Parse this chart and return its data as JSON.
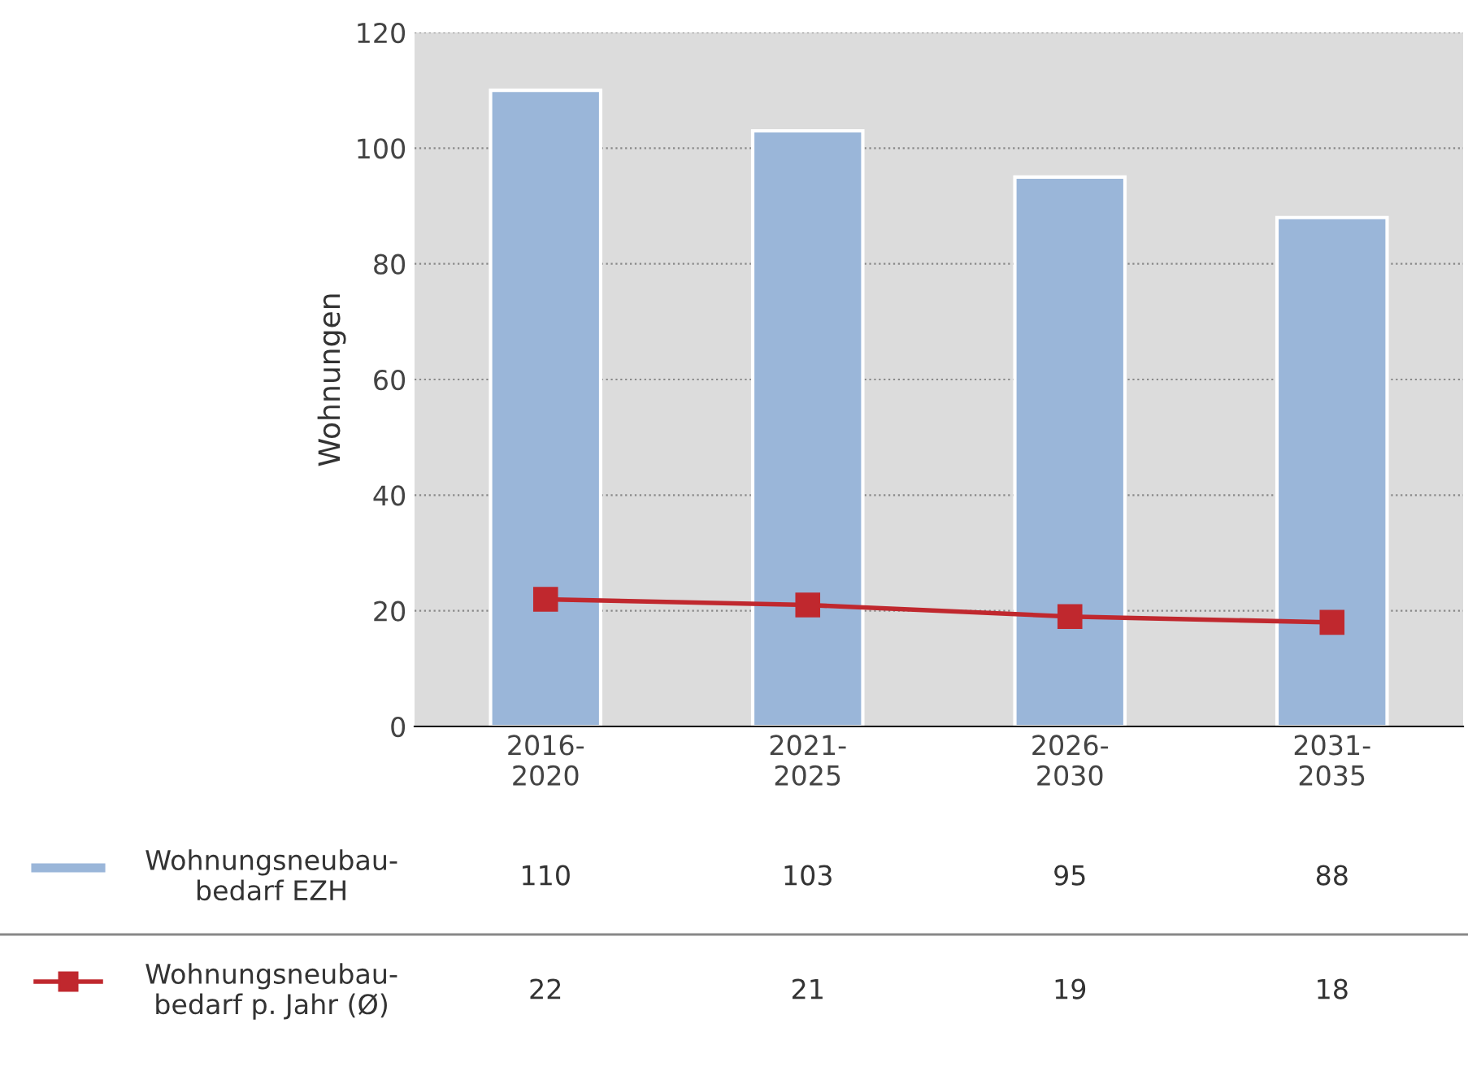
{
  "chart_data": {
    "type": "bar",
    "ylabel": "Wohnungen",
    "categories": [
      "2016-\n2020",
      "2021-\n2025",
      "2026-\n2030",
      "2031-\n2035"
    ],
    "series": [
      {
        "name": "Wohnungsneubau-\nbedarf EZH",
        "color": "#9ab6d9",
        "values": [
          110,
          103,
          95,
          88
        ]
      },
      {
        "name": "Wohnungsneubau-\nbedarf p. Jahr (Ø)",
        "type": "line",
        "color": "#c0282e",
        "marker": "square",
        "line_style": "solid",
        "values": [
          22,
          21,
          19,
          18
        ]
      }
    ],
    "ylim": [
      0,
      120
    ],
    "yticks": [
      0,
      20,
      40,
      60,
      80,
      100,
      120
    ],
    "grid": "y",
    "data_labels": true,
    "legend": "bottom left"
  }
}
